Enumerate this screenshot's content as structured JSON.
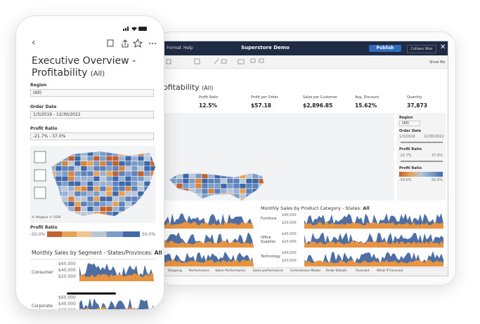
{
  "phone": {
    "title_line1": "Executive Overview -",
    "title_line2": "Profitability",
    "title_suffix": "(All)",
    "filters": [
      {
        "label": "Region",
        "value": "(All)"
      },
      {
        "label": "Order Date",
        "value": "1/3/2019 - 12/30/2022"
      },
      {
        "label": "Profit Ratio",
        "value": "-21.7% - 37.0%"
      }
    ],
    "map_credit": "© Mapbox © OSM",
    "legend": {
      "title": "Profit Ratio",
      "min": "-50.0%",
      "max": "50.0%"
    },
    "section_title": "Monthly Sales by Segment - States/Provinces: ",
    "section_filter": "All",
    "segments": [
      "Consumer",
      "Corporate"
    ],
    "axis_labels": [
      "$60,000",
      "$40,000",
      "$20,000"
    ]
  },
  "tablet": {
    "menu": [
      "Format",
      "Help"
    ],
    "app_title": "Superstore Demo",
    "publish": "Publish",
    "user": "Colleen Woo",
    "show_me": "Show Me",
    "dashboard_title": "ofitability",
    "dashboard_title_suffix": "(All)",
    "kpis": [
      {
        "label": "Profit Ratio",
        "value": "12.5%"
      },
      {
        "label": "Profit per Order",
        "value": "$57.18"
      },
      {
        "label": "Sales per Customer",
        "value": "$2,896.85"
      },
      {
        "label": "Avg. Discount",
        "value": "15.62%"
      },
      {
        "label": "Quantity",
        "value": "37,873"
      }
    ],
    "filters": {
      "region_label": "Region",
      "region_value": "(All)",
      "date_label": "Order Date",
      "date_start": "1/3/2019",
      "date_end": "12/30/2022",
      "ratio_label": "Profit Ratio",
      "ratio_min": "-21.7%",
      "ratio_max": "37.0%",
      "legend_title": "Profit Ratio",
      "legend_min": "-50.0%",
      "legend_max": "50.0%"
    },
    "chart_title": "Monthly Sales by Product Category - States: ",
    "chart_filter": "All",
    "categories": [
      "Furniture",
      "Office Supplies",
      "Technology"
    ],
    "axis_labels": [
      "$40,000",
      "$20,000"
    ],
    "tabs": [
      "Shipping",
      "Performance",
      "Sales Performance",
      "Sales performance",
      "Commission Model",
      "Order Details",
      "Forecast",
      "What If Forecast"
    ]
  }
}
